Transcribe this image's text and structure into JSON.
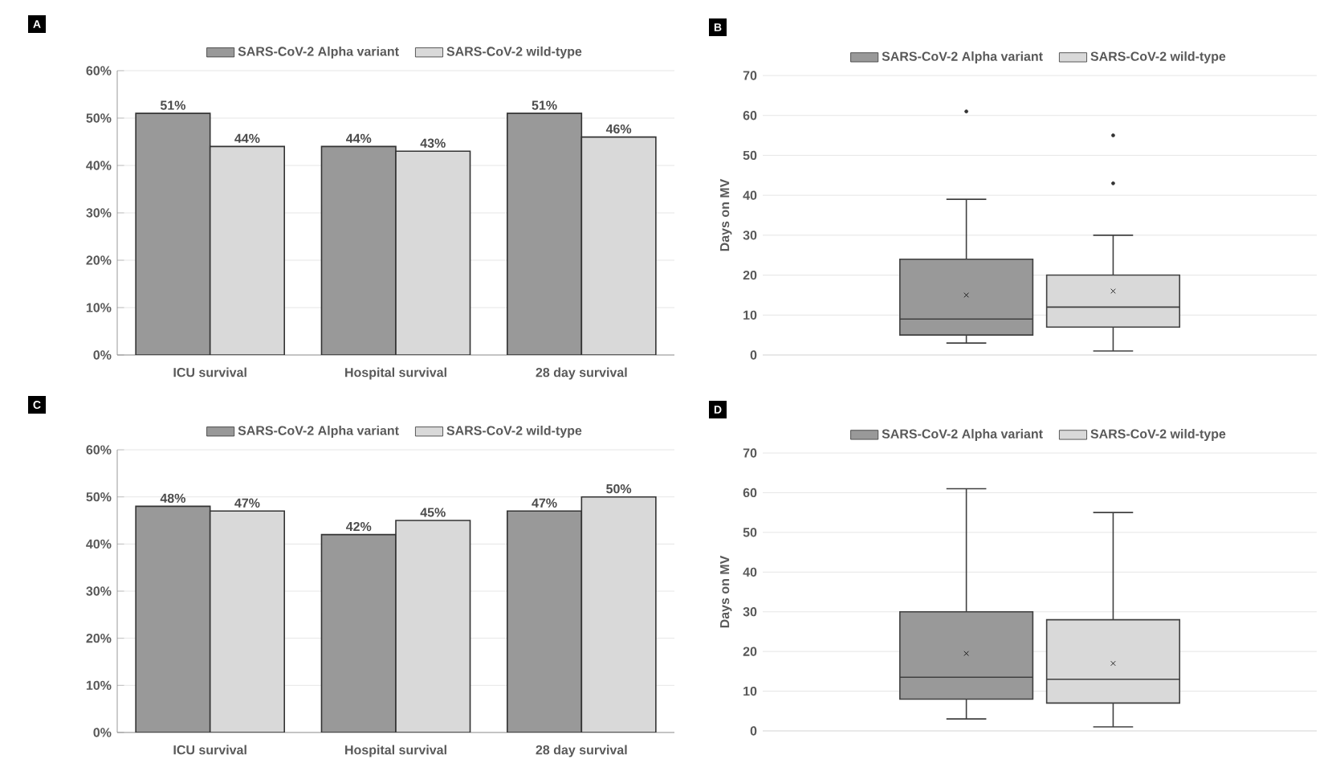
{
  "chart_data": [
    {
      "type": "bar",
      "title": "A",
      "categories": [
        "ICU survival",
        "Hospital survival",
        "28 day survival"
      ],
      "series": [
        {
          "name": "SARS-CoV-2 Alpha variant",
          "color": "#999999",
          "values": [
            51,
            44,
            51
          ],
          "value_labels": [
            "51%",
            "44%",
            "51%"
          ]
        },
        {
          "name": "SARS-CoV-2 wild-type",
          "color": "#d9d9d9",
          "values": [
            44,
            43,
            46
          ],
          "value_labels": [
            "44%",
            "43%",
            "46%"
          ]
        }
      ],
      "ylim": [
        0,
        60
      ],
      "yticks": [
        {
          "value": 0,
          "label": "0%"
        },
        {
          "value": 10,
          "label": "10%"
        },
        {
          "value": 20,
          "label": "20%"
        },
        {
          "value": 30,
          "label": "30%"
        },
        {
          "value": 40,
          "label": "40%"
        },
        {
          "value": 50,
          "label": "50%"
        },
        {
          "value": 60,
          "label": "60%"
        }
      ],
      "grid": "y",
      "legend": "top"
    },
    {
      "type": "box",
      "title": "B",
      "ylabel": "Days on MV",
      "categories": [
        null
      ],
      "series": [
        {
          "name": "SARS-CoV-2 Alpha variant",
          "color": "#999999",
          "boxes": [
            {
              "low": 3,
              "q1": 5,
              "median": 9,
              "q3": 24,
              "high": 39,
              "mean": 15,
              "outliers": [
                61
              ]
            }
          ]
        },
        {
          "name": "SARS-CoV-2 wild-type",
          "color": "#d9d9d9",
          "boxes": [
            {
              "low": 1,
              "q1": 7,
              "median": 12,
              "q3": 20,
              "high": 30,
              "mean": 16,
              "outliers": [
                43,
                55
              ]
            }
          ]
        }
      ],
      "ylim": [
        0,
        70
      ],
      "yticks": [
        0,
        10,
        20,
        30,
        40,
        50,
        60,
        70
      ],
      "grid": "y",
      "legend": "top"
    },
    {
      "type": "bar",
      "title": "C",
      "categories": [
        "ICU survival",
        "Hospital survival",
        "28 day survival"
      ],
      "series": [
        {
          "name": "SARS-CoV-2 Alpha variant",
          "color": "#999999",
          "values": [
            48,
            42,
            47
          ],
          "value_labels": [
            "48%",
            "42%",
            "47%"
          ]
        },
        {
          "name": "SARS-CoV-2 wild-type",
          "color": "#d9d9d9",
          "values": [
            47,
            45,
            50
          ],
          "value_labels": [
            "47%",
            "45%",
            "50%"
          ]
        }
      ],
      "ylim": [
        0,
        60
      ],
      "yticks": [
        {
          "value": 0,
          "label": "0%"
        },
        {
          "value": 10,
          "label": "10%"
        },
        {
          "value": 20,
          "label": "20%"
        },
        {
          "value": 30,
          "label": "30%"
        },
        {
          "value": 40,
          "label": "40%"
        },
        {
          "value": 50,
          "label": "50%"
        },
        {
          "value": 60,
          "label": "60%"
        }
      ],
      "grid": "y",
      "legend": "top"
    },
    {
      "type": "box",
      "title": "D",
      "ylabel": "Days on MV",
      "categories": [
        null
      ],
      "series": [
        {
          "name": "SARS-CoV-2 Alpha variant",
          "color": "#999999",
          "boxes": [
            {
              "low": 3,
              "q1": 8,
              "median": 13.5,
              "q3": 30,
              "high": 61,
              "mean": 19.5
            }
          ]
        },
        {
          "name": "SARS-CoV-2 wild-type",
          "color": "#d9d9d9",
          "boxes": [
            {
              "low": 1,
              "q1": 7,
              "median": 13,
              "q3": 28,
              "high": 55,
              "mean": 17
            }
          ]
        }
      ],
      "ylim": [
        0,
        70
      ],
      "yticks": [
        0,
        10,
        20,
        30,
        40,
        50,
        60,
        70
      ],
      "grid": "y",
      "legend": "top"
    }
  ]
}
